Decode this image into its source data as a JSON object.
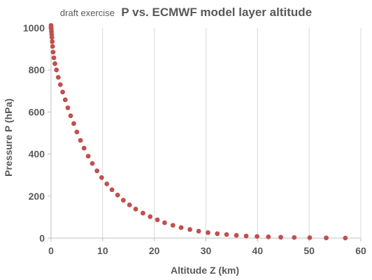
{
  "chart_data": {
    "type": "scatter",
    "title_prefix": "draft exercise",
    "title": "P vs. ECMWF model layer altitude",
    "xlabel": "Altitude Z (km)",
    "ylabel": "Pressure P (hPa)",
    "xlim": [
      0,
      60
    ],
    "ylim": [
      0,
      1000
    ],
    "xticks": [
      0,
      10,
      20,
      30,
      40,
      50,
      60
    ],
    "yticks": [
      0,
      200,
      400,
      600,
      800,
      1000
    ],
    "grid": "vertical",
    "legend": "none",
    "colors": {
      "marker": "#c0504d",
      "grid": "#d9d9d9",
      "axis": "#bfbfbf",
      "text": "#595959"
    },
    "series": [
      {
        "x": [
          0.0,
          0.02,
          0.05,
          0.08,
          0.12,
          0.17,
          0.23,
          0.3,
          0.4,
          0.55,
          0.75,
          1.05,
          1.4,
          1.8,
          2.25,
          2.75,
          3.25,
          3.8,
          4.4,
          5.0,
          5.7,
          6.4,
          7.2,
          8.0,
          8.9,
          9.8,
          10.8,
          11.8,
          12.9,
          14.0,
          15.2,
          16.4,
          17.8,
          19.2,
          20.6,
          22.0,
          23.6,
          25.2,
          26.9,
          28.6,
          30.4,
          32.2,
          34.0,
          35.9,
          37.8,
          39.9,
          42.1,
          44.5,
          47.1,
          50.1,
          53.3,
          57.0
        ],
        "y": [
          1012,
          1005,
          995,
          983,
          970,
          955,
          935,
          912,
          885,
          858,
          830,
          800,
          765,
          730,
          695,
          658,
          620,
          582,
          545,
          505,
          465,
          428,
          390,
          355,
          320,
          288,
          258,
          230,
          205,
          180,
          158,
          138,
          119,
          102,
          87,
          73,
          61,
          50,
          41,
          33,
          26,
          21,
          17,
          13,
          10,
          8,
          6,
          4,
          3,
          2,
          1,
          0.5
        ]
      }
    ]
  }
}
